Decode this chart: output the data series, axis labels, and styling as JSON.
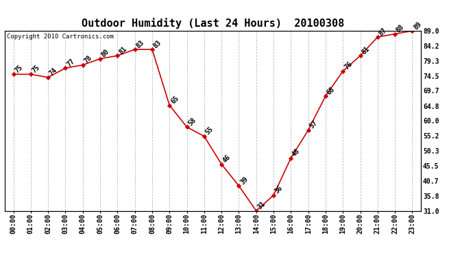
{
  "title": "Outdoor Humidity (Last 24 Hours)  20100308",
  "copyright": "Copyright 2010 Cartronics.com",
  "times": [
    "00:00",
    "01:00",
    "02:00",
    "03:00",
    "04:00",
    "05:00",
    "06:00",
    "07:00",
    "08:00",
    "09:00",
    "10:00",
    "11:00",
    "12:00",
    "13:00",
    "14:00",
    "15:00",
    "16:00",
    "17:00",
    "18:00",
    "19:00",
    "20:00",
    "21:00",
    "22:00",
    "23:00"
  ],
  "values": [
    75,
    75,
    74,
    77,
    78,
    80,
    81,
    83,
    83,
    65,
    58,
    55,
    46,
    39,
    31,
    36,
    48,
    57,
    68,
    76,
    81,
    87,
    88,
    89
  ],
  "ylim": [
    31.0,
    89.0
  ],
  "yticks_right": [
    89.0,
    84.2,
    79.3,
    74.5,
    69.7,
    64.8,
    60.0,
    55.2,
    50.3,
    45.5,
    40.7,
    35.8,
    31.0
  ],
  "line_color": "#cc0000",
  "marker_color": "#cc0000",
  "bg_color": "#ffffff",
  "grid_color": "#bbbbbb",
  "title_fontsize": 11,
  "label_fontsize": 7,
  "tick_fontsize": 7,
  "copyright_fontsize": 6.5,
  "figwidth": 6.9,
  "figheight": 3.75,
  "dpi": 100
}
